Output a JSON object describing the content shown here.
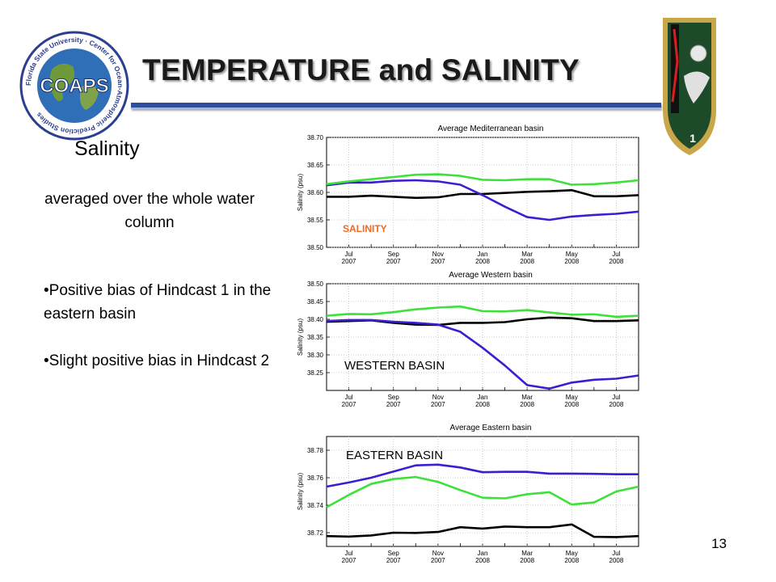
{
  "slide": {
    "title": "TEMPERATURE and SALINITY",
    "heading": "Salinity",
    "note": "averaged over the whole water column",
    "bullets": [
      "•Positive bias of Hindcast 1 in the eastern basin",
      "•Slight positive bias in Hindcast 2"
    ],
    "page_number": "13",
    "logo_text": "COAPS",
    "logo_ring_text": "Florida State University · Center for Ocean-Atmospheric Prediction Studies",
    "colors": {
      "title_rule": "#2f4f9c",
      "black_series": "#000000",
      "blue_series": "#3a1fd1",
      "green_series": "#3ee13a",
      "annotation_orange": "#ee6a27"
    }
  },
  "chart_data": [
    {
      "type": "line",
      "title": "Average Mediterranean basin",
      "xlabel": "",
      "ylabel": "Salinity (psu)",
      "ylim": [
        38.5,
        38.7
      ],
      "yticks": [
        "38.50",
        "38.55",
        "38.60",
        "38.65",
        "38.70"
      ],
      "xticks": [
        "Jul\n2007",
        "Sep\n2007",
        "Nov\n2007",
        "Jan\n2008",
        "Mar\n2008",
        "May\n2008",
        "Jul\n2008"
      ],
      "grid": true,
      "annotation": "SALINITY",
      "x": [
        "2007-06",
        "2007-07",
        "2007-08",
        "2007-09",
        "2007-10",
        "2007-11",
        "2007-12",
        "2008-01",
        "2008-02",
        "2008-03",
        "2008-04",
        "2008-05",
        "2008-06",
        "2008-07",
        "2008-08"
      ],
      "series": [
        {
          "color": "#000000",
          "values": [
            38.592,
            38.592,
            38.594,
            38.592,
            38.59,
            38.591,
            38.597,
            38.597,
            38.599,
            38.601,
            38.602,
            38.604,
            38.593,
            38.593,
            38.595
          ]
        },
        {
          "color": "#3a1fd1",
          "values": [
            38.613,
            38.618,
            38.618,
            38.621,
            38.622,
            38.62,
            38.614,
            38.595,
            38.574,
            38.555,
            38.55,
            38.556,
            38.559,
            38.561,
            38.565
          ]
        },
        {
          "color": "#3ee13a",
          "values": [
            38.615,
            38.62,
            38.624,
            38.628,
            38.632,
            38.633,
            38.63,
            38.623,
            38.622,
            38.624,
            38.624,
            38.614,
            38.615,
            38.618,
            38.622
          ]
        }
      ]
    },
    {
      "type": "line",
      "title": "Average Western basin",
      "xlabel": "",
      "ylabel": "Salinity (psu)",
      "ylim": [
        38.2,
        38.5
      ],
      "yticks": [
        "38.25",
        "38.30",
        "38.35",
        "38.40",
        "38.45",
        "38.50"
      ],
      "xticks": [
        "Jul\n2007",
        "Sep\n2007",
        "Nov\n2007",
        "Jan\n2008",
        "Mar\n2008",
        "May\n2008",
        "Jul\n2008"
      ],
      "grid": true,
      "annotation": "WESTERN BASIN",
      "x": [
        "2007-06",
        "2007-07",
        "2007-08",
        "2007-09",
        "2007-10",
        "2007-11",
        "2007-12",
        "2008-01",
        "2008-02",
        "2008-03",
        "2008-04",
        "2008-05",
        "2008-06",
        "2008-07",
        "2008-08"
      ],
      "series": [
        {
          "color": "#000000",
          "values": [
            38.393,
            38.395,
            38.397,
            38.39,
            38.385,
            38.384,
            38.39,
            38.39,
            38.392,
            38.4,
            38.405,
            38.403,
            38.395,
            38.395,
            38.397
          ]
        },
        {
          "color": "#3a1fd1",
          "values": [
            38.395,
            38.398,
            38.398,
            38.393,
            38.39,
            38.385,
            38.365,
            38.32,
            38.27,
            38.215,
            38.205,
            38.222,
            38.23,
            38.233,
            38.242
          ]
        },
        {
          "color": "#3ee13a",
          "values": [
            38.41,
            38.415,
            38.414,
            38.42,
            38.428,
            38.433,
            38.436,
            38.423,
            38.422,
            38.426,
            38.419,
            38.413,
            38.414,
            38.407,
            38.41
          ]
        }
      ]
    },
    {
      "type": "line",
      "title": "Average Eastern basin",
      "xlabel": "",
      "ylabel": "Salinity (psu)",
      "ylim": [
        38.71,
        38.79
      ],
      "yticks": [
        "38.72",
        "38.74",
        "38.76",
        "38.78"
      ],
      "xticks": [
        "Jul\n2007",
        "Sep\n2007",
        "Nov\n2007",
        "Jan\n2008",
        "Mar\n2008",
        "May\n2008",
        "Jul\n2008"
      ],
      "grid": true,
      "annotation": "EASTERN BASIN",
      "x": [
        "2007-06",
        "2007-07",
        "2007-08",
        "2007-09",
        "2007-10",
        "2007-11",
        "2007-12",
        "2008-01",
        "2008-02",
        "2008-03",
        "2008-04",
        "2008-05",
        "2008-06",
        "2008-07",
        "2008-08"
      ],
      "series": [
        {
          "color": "#000000",
          "values": [
            38.7175,
            38.7172,
            38.718,
            38.72,
            38.7198,
            38.7205,
            38.724,
            38.723,
            38.7245,
            38.724,
            38.724,
            38.726,
            38.717,
            38.7168,
            38.7175
          ]
        },
        {
          "color": "#3a1fd1",
          "values": [
            38.7535,
            38.7565,
            38.76,
            38.7645,
            38.769,
            38.7695,
            38.7675,
            38.764,
            38.7643,
            38.7643,
            38.763,
            38.763,
            38.7628,
            38.7625,
            38.7625
          ]
        },
        {
          "color": "#3ee13a",
          "values": [
            38.7385,
            38.7475,
            38.7555,
            38.759,
            38.7605,
            38.757,
            38.751,
            38.7455,
            38.745,
            38.748,
            38.7495,
            38.7405,
            38.742,
            38.75,
            38.7535
          ]
        }
      ]
    }
  ]
}
